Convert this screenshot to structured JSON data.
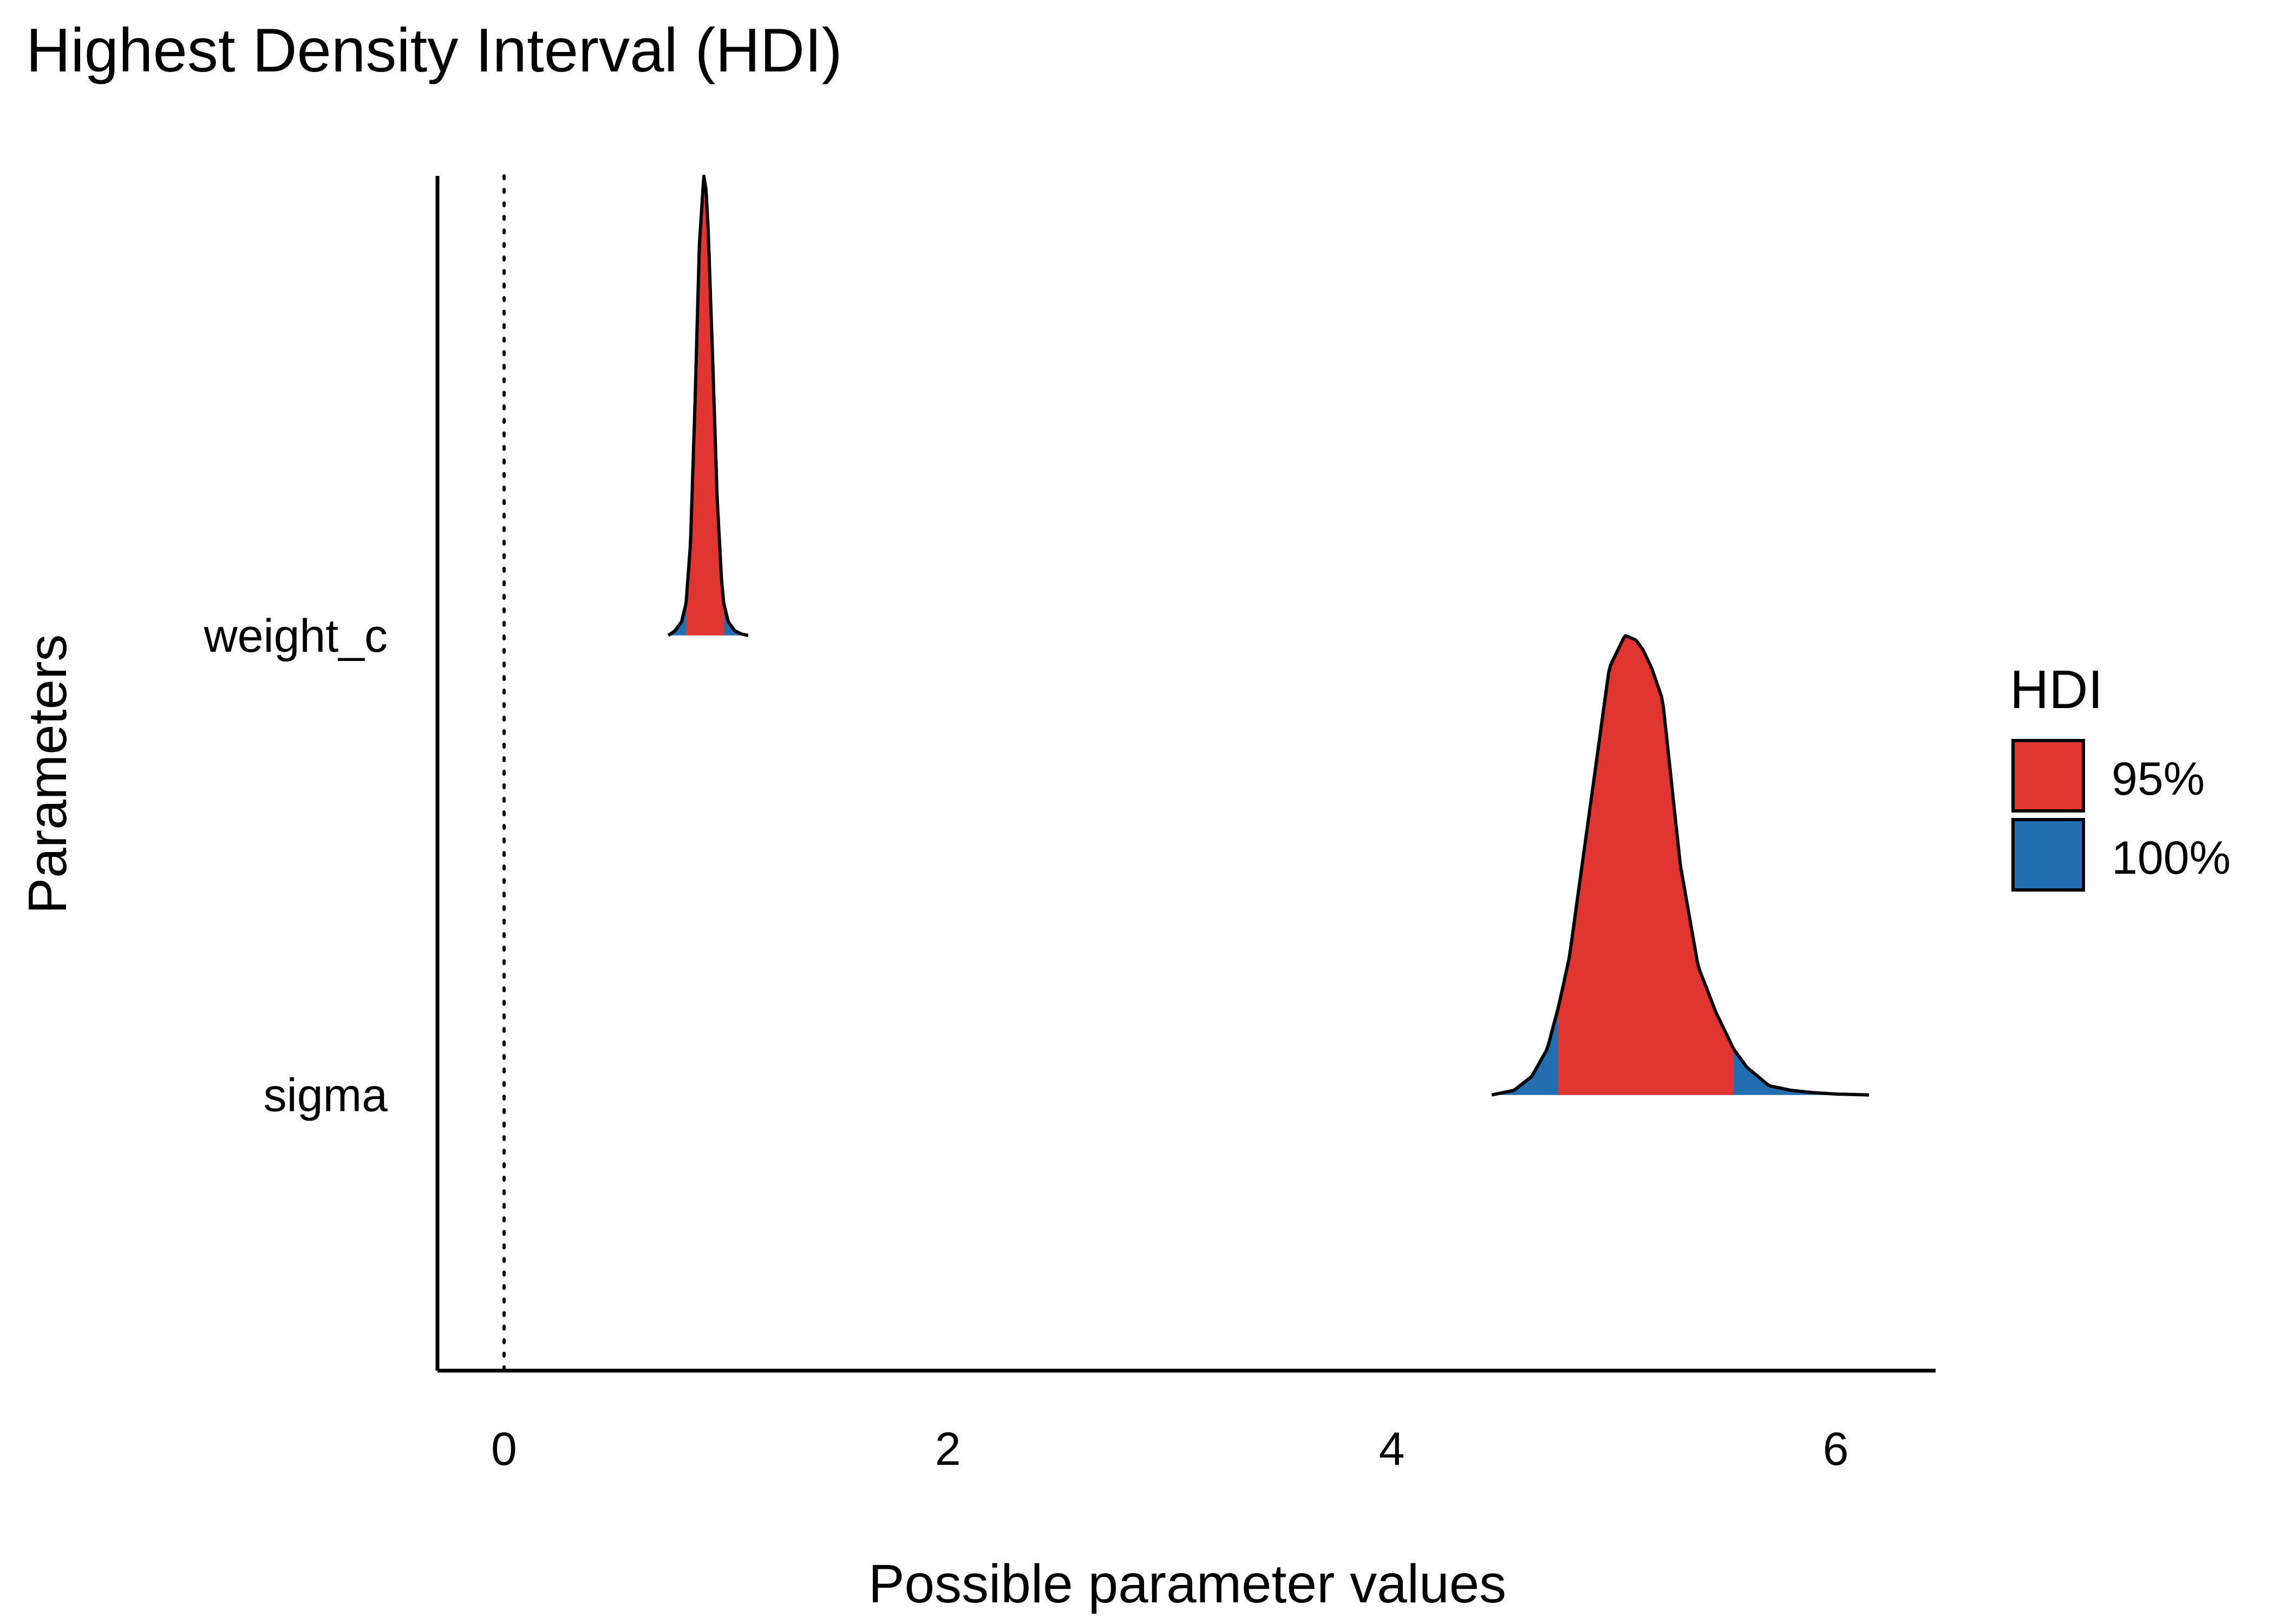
{
  "chart_data": {
    "type": "hdi-density",
    "title": "Highest Density Interval (HDI)",
    "xlabel": "Possible parameter values",
    "ylabel": "Parameters",
    "xlim": [
      -0.3,
      6.45
    ],
    "x_ticks": [
      0,
      2,
      4,
      6
    ],
    "reference_line": {
      "x": 0,
      "style": "dotted"
    },
    "legend": {
      "title": "HDI",
      "position": "right",
      "entries": [
        {
          "label": "95%",
          "color": "#e03530"
        },
        {
          "label": "100%",
          "color": "#226eb0"
        }
      ]
    },
    "parameters": [
      {
        "name": "weight_c",
        "full_range": [
          0.74,
          1.1
        ],
        "hdi95": [
          0.82,
          0.99
        ],
        "density_x": [
          0.74,
          0.77,
          0.8,
          0.82,
          0.84,
          0.86,
          0.88,
          0.9,
          0.91,
          0.92,
          0.94,
          0.96,
          0.98,
          0.99,
          1.01,
          1.04,
          1.07,
          1.1
        ],
        "density_y": [
          0.0,
          0.01,
          0.03,
          0.07,
          0.2,
          0.5,
          0.85,
          1.0,
          0.97,
          0.88,
          0.6,
          0.3,
          0.12,
          0.07,
          0.03,
          0.01,
          0.003,
          0.0
        ]
      },
      {
        "name": "sigma",
        "full_range": [
          4.45,
          6.15
        ],
        "hdi95": [
          4.75,
          5.54
        ],
        "density_x": [
          4.45,
          4.55,
          4.63,
          4.7,
          4.75,
          4.8,
          4.9,
          4.98,
          5.05,
          5.1,
          5.13,
          5.17,
          5.22,
          5.3,
          5.38,
          5.46,
          5.54,
          5.6,
          5.7,
          5.8,
          5.9,
          6.0,
          6.15
        ],
        "density_y": [
          0.0,
          0.01,
          0.04,
          0.1,
          0.19,
          0.3,
          0.65,
          0.93,
          1.0,
          0.99,
          0.97,
          0.93,
          0.86,
          0.5,
          0.28,
          0.18,
          0.1,
          0.06,
          0.02,
          0.01,
          0.005,
          0.002,
          0.0
        ]
      }
    ]
  }
}
